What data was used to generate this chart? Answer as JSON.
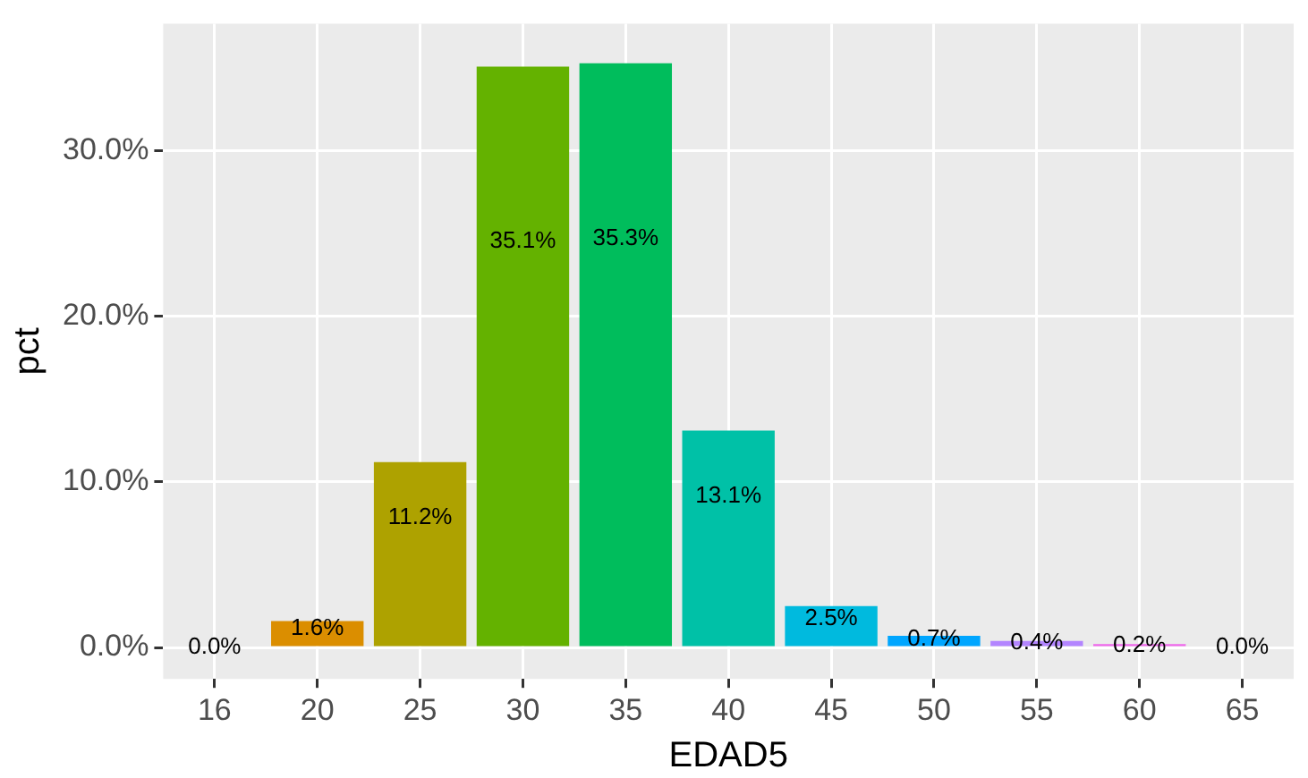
{
  "chart_data": {
    "type": "bar",
    "xlabel": "EDAD5",
    "ylabel": "pct",
    "categories": [
      "16",
      "20",
      "25",
      "30",
      "35",
      "40",
      "45",
      "50",
      "55",
      "60",
      "65"
    ],
    "values": [
      0.0,
      1.6,
      11.2,
      35.1,
      35.3,
      13.1,
      2.5,
      0.7,
      0.4,
      0.2,
      0.0
    ],
    "colors": [
      "#f8766d",
      "#db8e00",
      "#aea200",
      "#64b200",
      "#00bd5c",
      "#00c1a7",
      "#00bade",
      "#00a6ff",
      "#b385ff",
      "#ef67eb",
      "#ff63b6"
    ],
    "value_labels": [
      "0.0%",
      "1.6%",
      "11.2%",
      "35.1%",
      "35.3%",
      "13.1%",
      "2.5%",
      "0.7%",
      "0.4%",
      "0.2%",
      "0.0%"
    ],
    "ylim": [
      -1.9,
      37.7
    ],
    "yticks": [
      {
        "value": 0,
        "label": "0.0%"
      },
      {
        "value": 10,
        "label": "10.0%"
      },
      {
        "value": 20,
        "label": "20.0%"
      },
      {
        "value": 30,
        "label": "30.0%"
      }
    ],
    "grid": true,
    "legend": false
  }
}
